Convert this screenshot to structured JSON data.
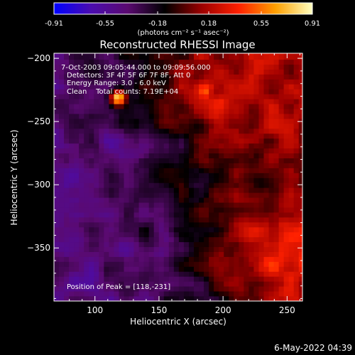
{
  "colorbar": {
    "tick_labels": [
      "-0.91",
      "-0.55",
      "-0.18",
      "0.18",
      "0.55",
      "0.91"
    ],
    "tick_values": [
      -0.91,
      -0.55,
      -0.18,
      0.18,
      0.55,
      0.91
    ],
    "range": [
      -0.91,
      0.91
    ],
    "units_label": "(photons cm⁻² s⁻¹ asec⁻²)",
    "stops": [
      "#0000ff",
      "#4b0cb0",
      "#5a0a70",
      "#000000",
      "#9c0000",
      "#ff2000",
      "#ffa000",
      "#ffffc0"
    ]
  },
  "chart_data": {
    "type": "heatmap",
    "title": "Reconstructed RHESSI Image",
    "xlabel": "Heliocentric X (arcsec)",
    "ylabel": "Heliocentric Y (arcsec)",
    "xlim": [
      68,
      262
    ],
    "ylim": [
      -392,
      -196
    ],
    "x_ticks": [
      100,
      150,
      200,
      250
    ],
    "y_ticks": [
      -200,
      -250,
      -300,
      -350
    ],
    "x_tick_labels": [
      "100",
      "150",
      "200",
      "250"
    ],
    "y_tick_labels": [
      "−200",
      "−250",
      "−300",
      "−350"
    ],
    "annotations": [
      "7-Oct-2003 09:05:44.000 to 09:09:56.000",
      "Detectors: 3F 4F 5F 6F 7F 8F, Att 0",
      "Energy Range: 3.0 - 6.0 keV",
      "Clean    Total counts: 7.19E+04"
    ],
    "peak_label": "Position of Peak = [118,-231]",
    "peak": [
      118,
      -231
    ],
    "grid": false
  },
  "footer": {
    "date": "6-May-2022 04:39"
  }
}
